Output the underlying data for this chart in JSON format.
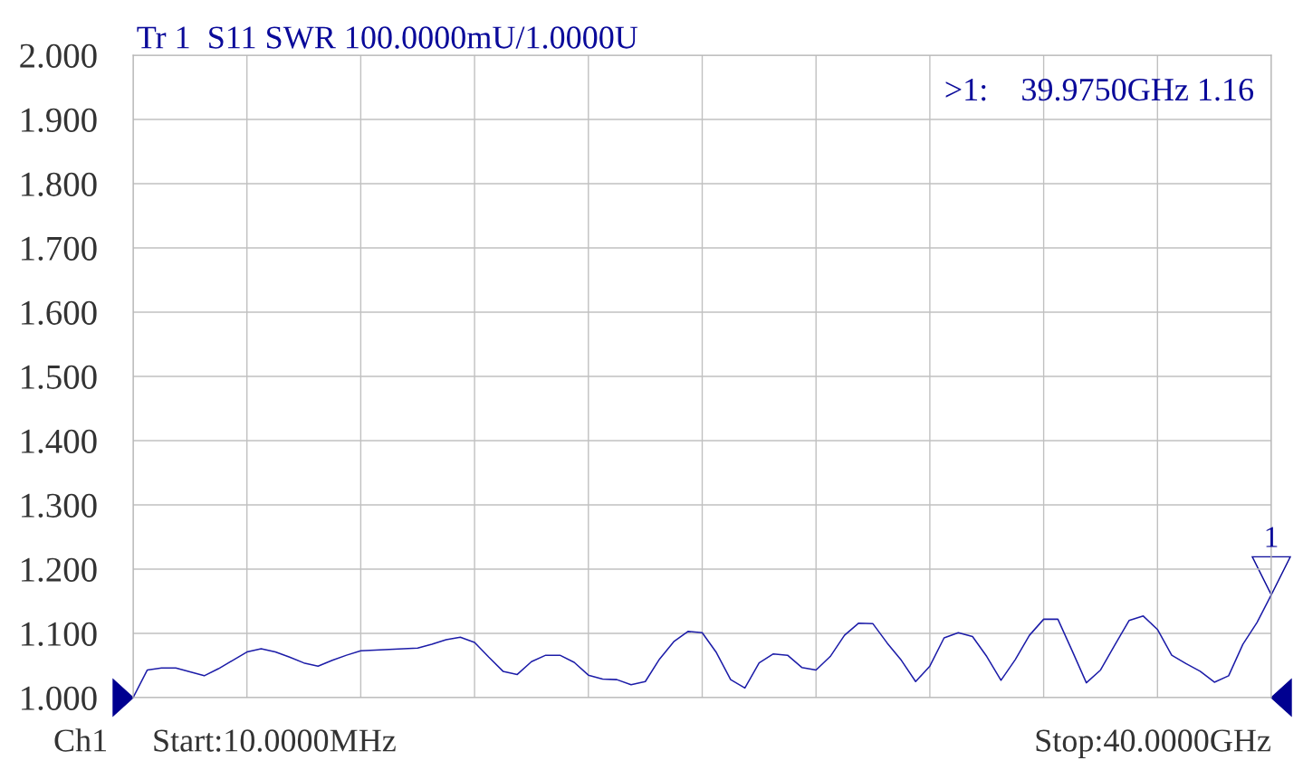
{
  "chart_data": {
    "type": "line",
    "title": "Tr 1  S11 SWR 100.0000mU/1.0000U",
    "categories": [
      null,
      null,
      null,
      null,
      null,
      null,
      null,
      null,
      null,
      null,
      null,
      null,
      null,
      null,
      null,
      null,
      null,
      null,
      null,
      null,
      null,
      null,
      null,
      null,
      null,
      null,
      null,
      null,
      null,
      null,
      null,
      null,
      null,
      null,
      null,
      null,
      null,
      null,
      null,
      null,
      null,
      null,
      null,
      null,
      null,
      null,
      null,
      null,
      null,
      null,
      null,
      null,
      null,
      null,
      null,
      null,
      null,
      null,
      null,
      null,
      null,
      null,
      null,
      null,
      null,
      null,
      null,
      null,
      null,
      null,
      null,
      null,
      null,
      null,
      null,
      null,
      null,
      null,
      null,
      null,
      null
    ],
    "series": [
      {
        "color": "#1c1ca8",
        "values": [
          1.0,
          1.043,
          1.046,
          1.046,
          1.04,
          1.034,
          1.045,
          1.058,
          1.071,
          1.076,
          1.071,
          1.063,
          1.054,
          1.049,
          1.058,
          1.066,
          1.073,
          1.074,
          1.075,
          1.076,
          1.077,
          1.083,
          1.09,
          1.094,
          1.086,
          1.063,
          1.041,
          1.036,
          1.056,
          1.066,
          1.066,
          1.055,
          1.035,
          1.029,
          1.028,
          1.02,
          1.025,
          1.06,
          1.087,
          1.103,
          1.101,
          1.07,
          1.028,
          1.015,
          1.054,
          1.068,
          1.066,
          1.047,
          1.043,
          1.064,
          1.097,
          1.116,
          1.115,
          1.085,
          1.058,
          1.025,
          1.049,
          1.093,
          1.101,
          1.095,
          1.064,
          1.027,
          1.059,
          1.097,
          1.122,
          1.122,
          1.073,
          1.023,
          1.043,
          1.082,
          1.12,
          1.127,
          1.106,
          1.066,
          1.053,
          1.041,
          1.024,
          1.034,
          1.083,
          1.117,
          1.16
        ]
      }
    ],
    "ylim": [
      1.0,
      2.0
    ],
    "yticks": [
      {
        "value": 1.0,
        "label": "1.000"
      },
      {
        "value": 1.1,
        "label": "1.100"
      },
      {
        "value": 1.2,
        "label": "1.200"
      },
      {
        "value": 1.3,
        "label": "1.300"
      },
      {
        "value": 1.4,
        "label": "1.400"
      },
      {
        "value": 1.5,
        "label": "1.500"
      },
      {
        "value": 1.6,
        "label": "1.600"
      },
      {
        "value": 1.7,
        "label": "1.700"
      },
      {
        "value": 1.8,
        "label": "1.800"
      },
      {
        "value": 1.9,
        "label": "1.900"
      },
      {
        "value": 2.0,
        "label": "2.000"
      }
    ],
    "grid": true,
    "line_style": "solid",
    "annotations": [
      {
        "text": "1",
        "y": 1.16
      },
      ">1:    39.9750GHz 1.16",
      "Ch1",
      "Start:10.0000MHz",
      "Stop:40.0000GHz"
    ]
  }
}
